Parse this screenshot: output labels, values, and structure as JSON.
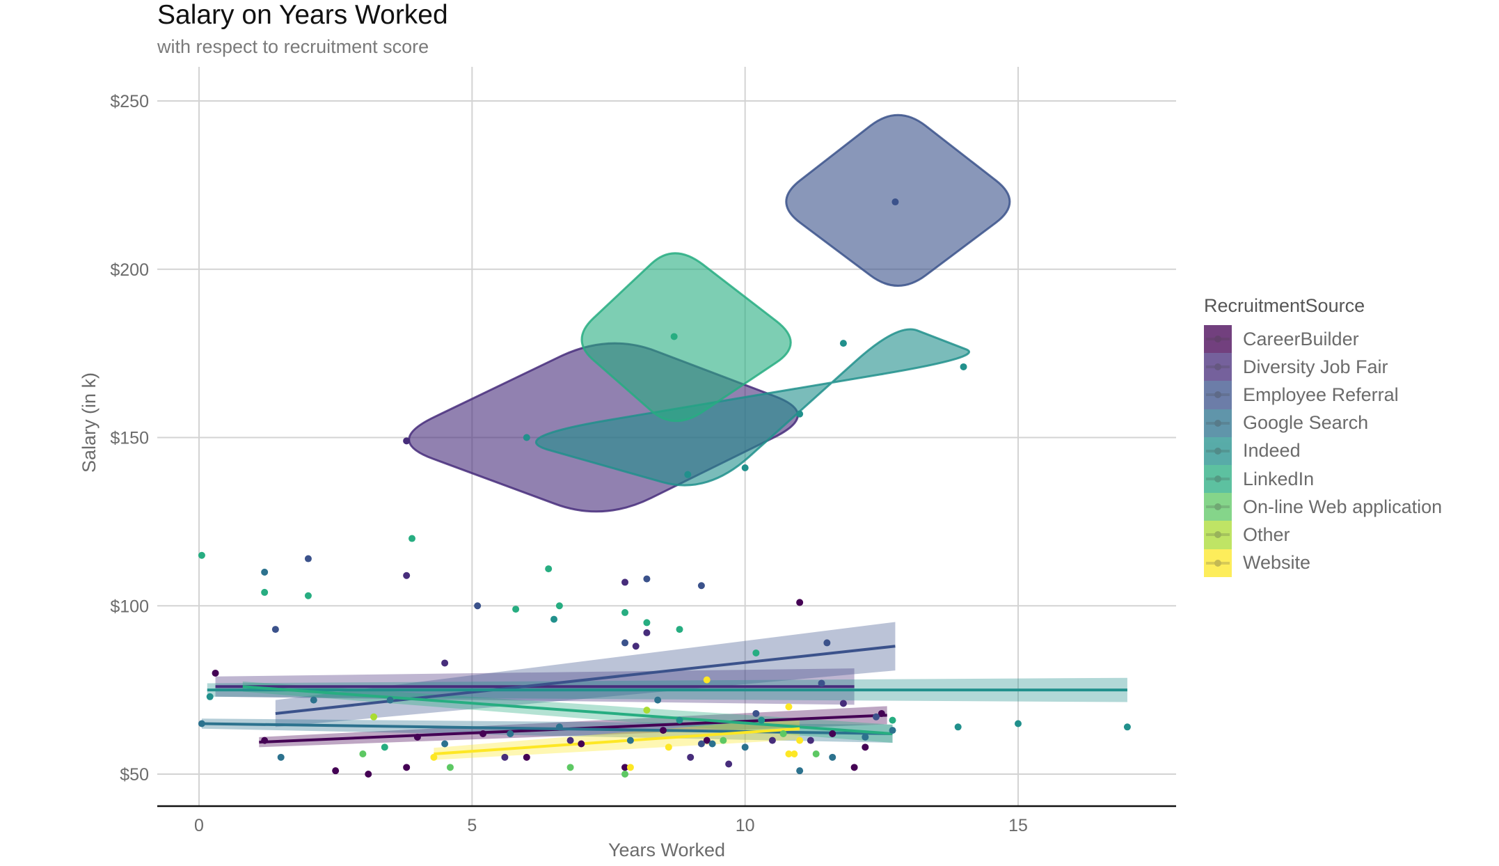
{
  "chart_data": {
    "type": "scatter",
    "title": "Salary on Years Worked",
    "subtitle": "with respect to recruitment score",
    "xlabel": "Years Worked",
    "ylabel": "Salary (in k)",
    "xlim": [
      -0.75,
      18.65
    ],
    "ylim": [
      40,
      260
    ],
    "x_ticks": [
      0,
      5,
      10,
      15
    ],
    "x_tick_labels": [
      "0",
      "5",
      "10",
      "15"
    ],
    "y_ticks": [
      50,
      100,
      150,
      200,
      250
    ],
    "y_tick_labels": [
      "$50",
      "$100",
      "$150",
      "$200",
      "$250"
    ],
    "grid": true,
    "legend_title": "RecruitmentSource",
    "legend_position": "right",
    "overlays": [
      "points",
      "linear fit with confidence band",
      "smoothed hull around high-salary points"
    ],
    "series": [
      {
        "name": "CareerBuilder",
        "color": "#440154",
        "points": [
          [
            0.3,
            80
          ],
          [
            1.2,
            60
          ],
          [
            2.5,
            51
          ],
          [
            3.1,
            50
          ],
          [
            3.8,
            52
          ],
          [
            4.0,
            61
          ],
          [
            5.2,
            62
          ],
          [
            6.0,
            55
          ],
          [
            7.0,
            59
          ],
          [
            7.8,
            52
          ],
          [
            8.5,
            63
          ],
          [
            9.3,
            60
          ],
          [
            11.0,
            101
          ],
          [
            11.6,
            62
          ],
          [
            12.0,
            52
          ],
          [
            12.5,
            68
          ],
          [
            12.2,
            58
          ]
        ],
        "fit": {
          "x": [
            1.1,
            12.6
          ],
          "y": [
            59.5,
            67.5
          ],
          "ci": 1.5
        }
      },
      {
        "name": "Diversity Job Fair",
        "color": "#472D7B",
        "points": [
          [
            3.8,
            149
          ],
          [
            3.8,
            109
          ],
          [
            4.5,
            83
          ],
          [
            5.6,
            55
          ],
          [
            6.8,
            60
          ],
          [
            7.8,
            107
          ],
          [
            8.0,
            88
          ],
          [
            8.2,
            92
          ],
          [
            9.0,
            55
          ],
          [
            9.7,
            53
          ],
          [
            10.5,
            60
          ],
          [
            11.2,
            60
          ],
          [
            11.8,
            71
          ]
        ],
        "fit": {
          "x": [
            0.3,
            12.0
          ],
          "y": [
            76,
            76
          ],
          "ci": 3
        },
        "hull": [
          [
            3.4,
            149
          ],
          [
            7.5,
            181
          ],
          [
            11.4,
            157
          ],
          [
            7.4,
            125
          ]
        ]
      },
      {
        "name": "Employee Referral",
        "color": "#3B528B",
        "points": [
          [
            12.75,
            220
          ],
          [
            1.4,
            93
          ],
          [
            2.0,
            114
          ],
          [
            5.1,
            100
          ],
          [
            7.8,
            89
          ],
          [
            9.2,
            106
          ],
          [
            8.2,
            108
          ],
          [
            10.2,
            68
          ],
          [
            11.4,
            77
          ],
          [
            11.5,
            89
          ],
          [
            12.4,
            67
          ],
          [
            9.2,
            59
          ]
        ],
        "fit": {
          "x": [
            1.4,
            12.75
          ],
          "y": [
            68,
            88
          ],
          "ci": 4
        },
        "hull": [
          [
            10.5,
            220
          ],
          [
            12.8,
            249
          ],
          [
            15.1,
            220
          ],
          [
            12.8,
            192
          ]
        ]
      },
      {
        "name": "Google Search",
        "color": "#2C728E",
        "points": [
          [
            0.05,
            65
          ],
          [
            1.2,
            110
          ],
          [
            1.5,
            55
          ],
          [
            2.1,
            72
          ],
          [
            3.5,
            72
          ],
          [
            4.5,
            59
          ],
          [
            5.7,
            62
          ],
          [
            6.6,
            64
          ],
          [
            7.9,
            60
          ],
          [
            8.4,
            72
          ],
          [
            9.4,
            59
          ],
          [
            10.0,
            58
          ],
          [
            11.0,
            51
          ],
          [
            11.6,
            55
          ],
          [
            12.7,
            63
          ],
          [
            12.2,
            61
          ]
        ],
        "fit": {
          "x": [
            0.05,
            12.7
          ],
          "y": [
            65,
            62
          ],
          "ci": 1.5
        }
      },
      {
        "name": "Indeed",
        "color": "#21908C",
        "points": [
          [
            6.0,
            150
          ],
          [
            8.95,
            139
          ],
          [
            10.0,
            141
          ],
          [
            11.0,
            157
          ],
          [
            11.8,
            178
          ],
          [
            14.0,
            171
          ],
          [
            13.9,
            64
          ],
          [
            15.0,
            65
          ],
          [
            17.0,
            64
          ],
          [
            6.5,
            96
          ],
          [
            8.8,
            66
          ],
          [
            10.3,
            66
          ],
          [
            0.2,
            73
          ]
        ],
        "fit": {
          "x": [
            0.15,
            17.0
          ],
          "y": [
            75,
            75
          ],
          "ci": 2
        },
        "hull": [
          [
            5.6,
            150
          ],
          [
            9.3,
            133
          ],
          [
            12.8,
            184
          ],
          [
            14.4,
            174
          ]
        ]
      },
      {
        "name": "LinkedIn",
        "color": "#27AD81",
        "points": [
          [
            8.7,
            180
          ],
          [
            0.05,
            115
          ],
          [
            1.2,
            104
          ],
          [
            2.0,
            103
          ],
          [
            3.9,
            120
          ],
          [
            5.8,
            99
          ],
          [
            6.4,
            111
          ],
          [
            6.6,
            100
          ],
          [
            7.8,
            98
          ],
          [
            8.2,
            95
          ],
          [
            8.8,
            93
          ],
          [
            10.2,
            86
          ],
          [
            12.7,
            66
          ],
          [
            3.4,
            58
          ]
        ],
        "fit": {
          "x": [
            0.8,
            12.7
          ],
          "y": [
            76,
            62
          ],
          "ci": 1.5
        },
        "hull": [
          [
            6.8,
            179
          ],
          [
            8.7,
            208
          ],
          [
            11.1,
            178
          ],
          [
            8.7,
            152
          ]
        ]
      },
      {
        "name": "On-line Web application",
        "color": "#5DC863",
        "points": [
          [
            4.6,
            52
          ],
          [
            7.8,
            50
          ],
          [
            9.6,
            60
          ],
          [
            11.3,
            56
          ],
          [
            3.0,
            56
          ],
          [
            6.8,
            52
          ],
          [
            10.7,
            62
          ]
        ],
        "fit": null
      },
      {
        "name": "Other",
        "color": "#AADC32",
        "points": [
          [
            3.2,
            67
          ],
          [
            8.2,
            69
          ]
        ],
        "fit": null
      },
      {
        "name": "Website",
        "color": "#FDE725",
        "points": [
          [
            4.3,
            55
          ],
          [
            7.9,
            52
          ],
          [
            8.6,
            58
          ],
          [
            9.3,
            78
          ],
          [
            10.8,
            70
          ],
          [
            10.9,
            56
          ],
          [
            11.0,
            60
          ],
          [
            10.8,
            56
          ]
        ],
        "fit": {
          "x": [
            4.3,
            11.0
          ],
          "y": [
            56,
            63.5
          ],
          "ci": 1.8
        }
      }
    ]
  }
}
